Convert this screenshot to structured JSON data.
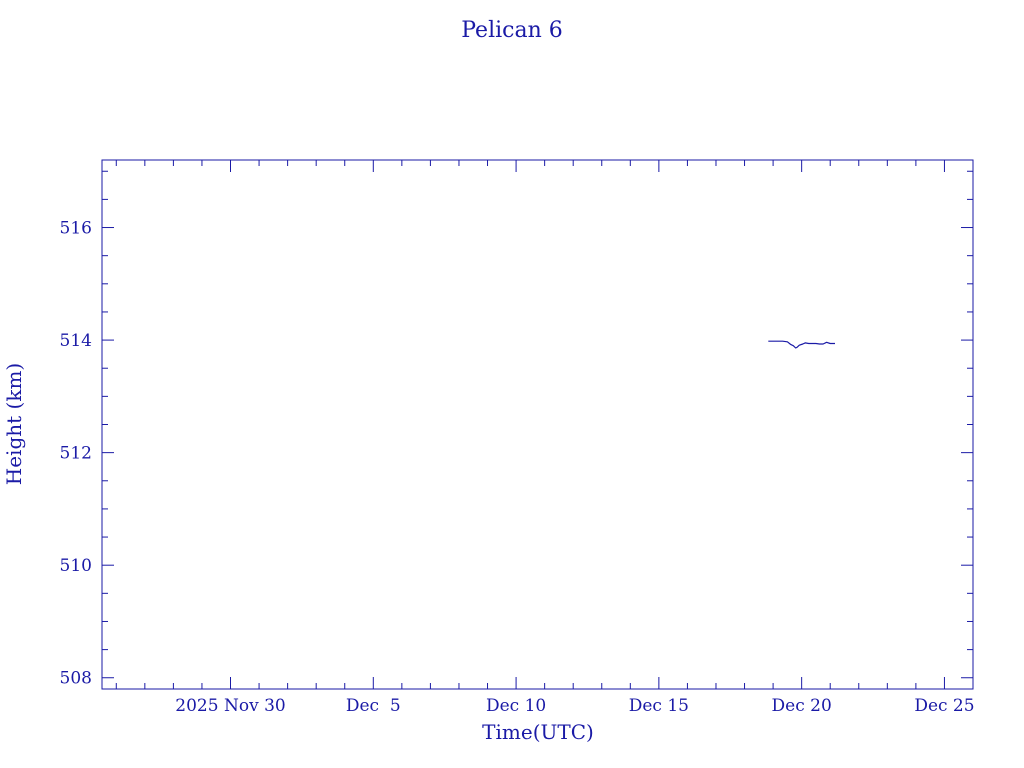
{
  "chart_data": {
    "type": "line",
    "title": "Pelican 6",
    "xlabel": "Time(UTC)",
    "ylabel": "Height (km)",
    "xlim": [
      "2025-11-25T12:00",
      "2025-12-26T00:00"
    ],
    "ylim": [
      507.8,
      517.2
    ],
    "x_ticks": [
      {
        "date": "2025-11-30",
        "label": "2025 Nov 30"
      },
      {
        "date": "2025-12-05",
        "label": "Dec  5"
      },
      {
        "date": "2025-12-10",
        "label": "Dec 10"
      },
      {
        "date": "2025-12-15",
        "label": "Dec 15"
      },
      {
        "date": "2025-12-20",
        "label": "Dec 20"
      },
      {
        "date": "2025-12-25",
        "label": "Dec 25"
      }
    ],
    "y_ticks": [
      508,
      510,
      512,
      514,
      516
    ],
    "grid": false,
    "series": [
      {
        "name": "",
        "color": "#1a1aa6",
        "x": [
          "2025-12-18T20:00",
          "2025-12-19T08:00",
          "2025-12-19T12:00",
          "2025-12-19T15:00",
          "2025-12-19T17:00",
          "2025-12-19T19:00",
          "2025-12-19T20:00",
          "2025-12-19T22:00",
          "2025-12-20T01:00",
          "2025-12-20T03:00",
          "2025-12-20T06:00",
          "2025-12-20T09:00",
          "2025-12-20T12:00",
          "2025-12-20T15:00",
          "2025-12-20T18:00",
          "2025-12-20T21:00",
          "2025-12-21T00:00",
          "2025-12-21T04:00"
        ],
        "y": [
          513.98,
          513.98,
          513.97,
          513.92,
          513.9,
          513.86,
          513.87,
          513.91,
          513.93,
          513.95,
          513.94,
          513.94,
          513.94,
          513.93,
          513.93,
          513.96,
          513.94,
          513.94
        ]
      }
    ]
  }
}
